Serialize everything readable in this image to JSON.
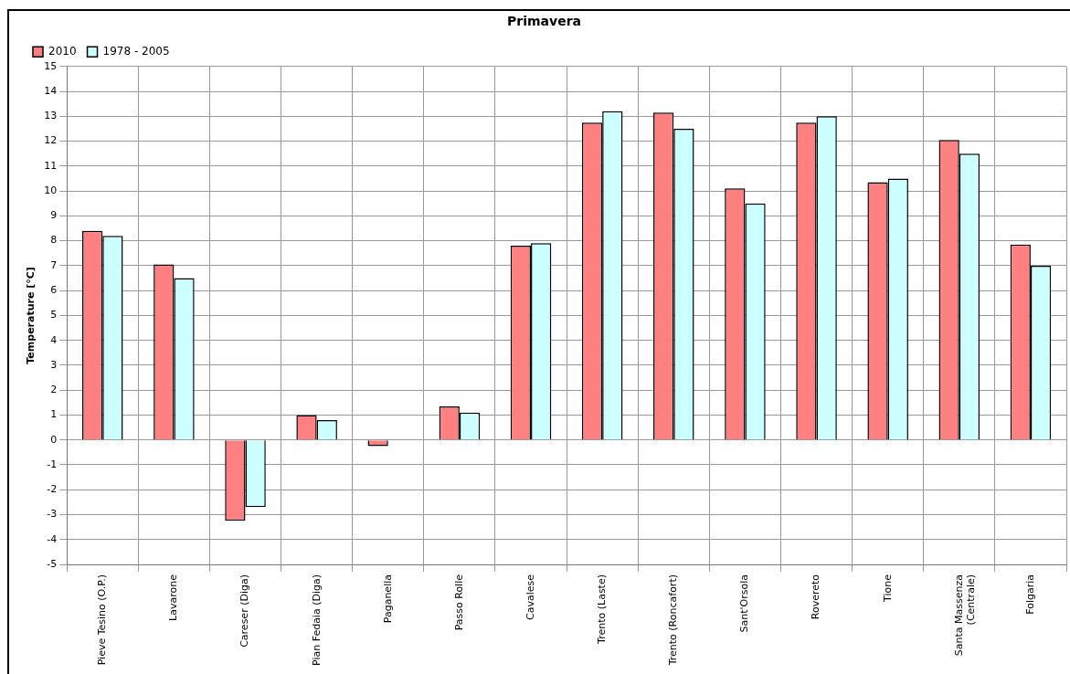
{
  "chart_data": {
    "type": "bar",
    "title": "Primavera",
    "ylabel": "Temperature [°C]",
    "categories": [
      "Pieve Tesino (O.P.)",
      "Lavarone",
      "Careser (Diga)",
      "Pian Fedaia (Diga)",
      "Paganella",
      "Passo Rolle",
      "Cavalese",
      "Trento (Laste)",
      "Trento (Roncafort)",
      "Sant'Orsola",
      "Rovereto",
      "Tione",
      "Santa Massenza (Centrale)",
      "Folgaria"
    ],
    "series": [
      {
        "name": "2010",
        "color": "#ff8080",
        "values": [
          8.4,
          7.05,
          -3.25,
          1.0,
          -0.25,
          1.35,
          7.8,
          12.75,
          13.15,
          10.1,
          12.75,
          10.35,
          12.05,
          7.85
        ]
      },
      {
        "name": "1978 - 2005",
        "color": "#ccffff",
        "values": [
          8.2,
          6.5,
          -2.7,
          0.8,
          null,
          1.1,
          7.9,
          13.2,
          12.5,
          9.5,
          13.0,
          10.5,
          11.5,
          7.0
        ]
      }
    ],
    "ylim": [
      -5,
      15
    ],
    "yticks": [
      -5,
      -4,
      -3,
      -2,
      -1,
      0,
      1,
      2,
      3,
      4,
      5,
      6,
      7,
      8,
      9,
      10,
      11,
      12,
      13,
      14,
      15
    ],
    "grid": true,
    "legend": "top left"
  }
}
